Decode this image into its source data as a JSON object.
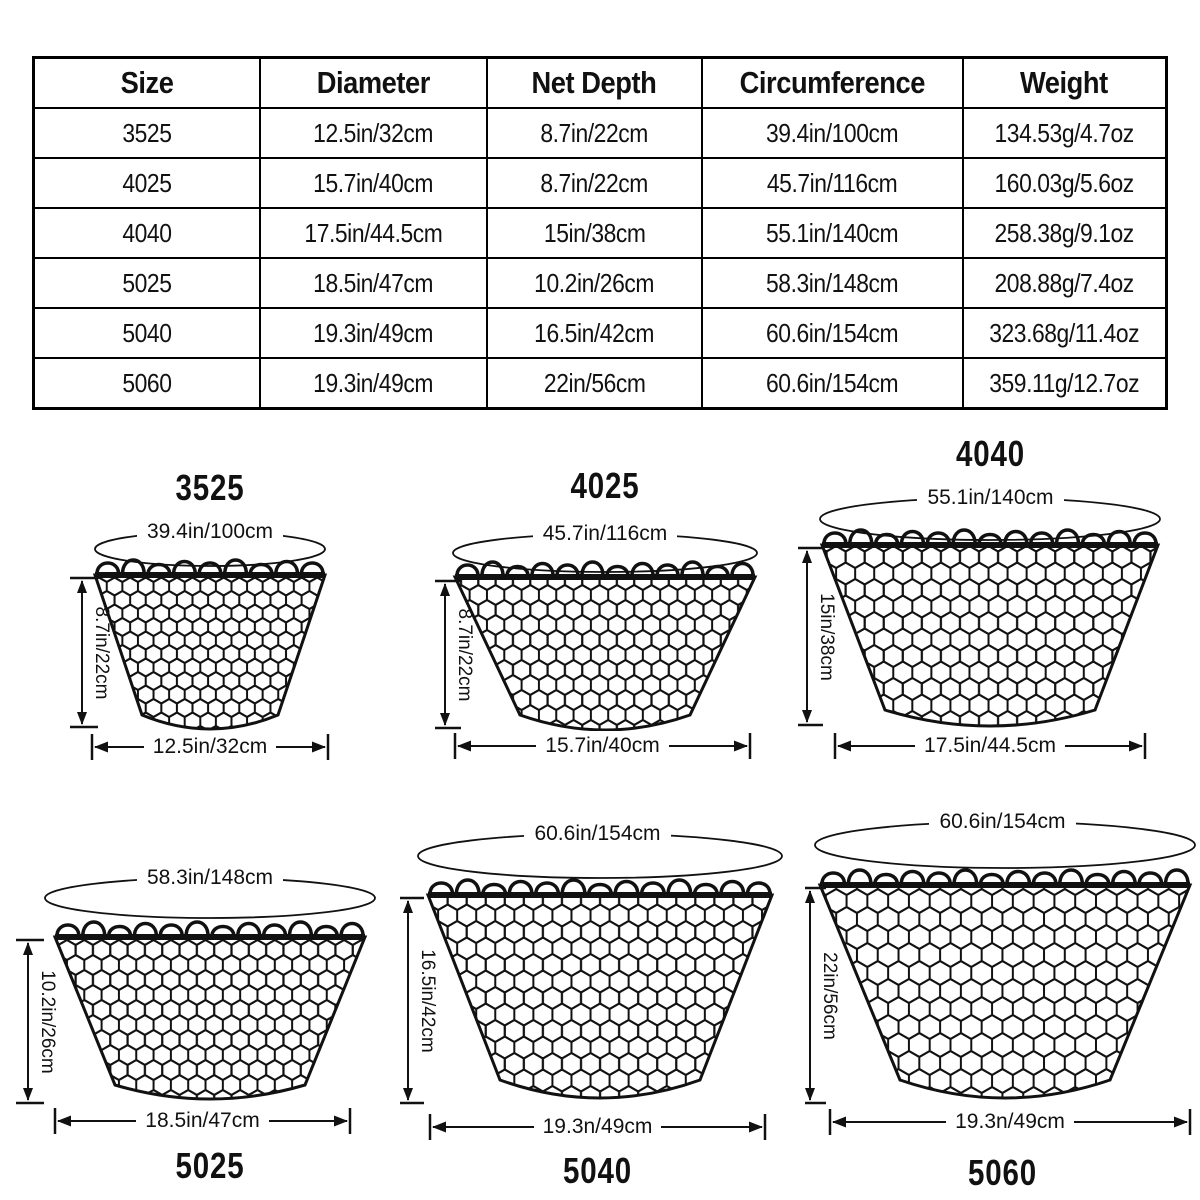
{
  "table": {
    "headers": [
      "Size",
      "Diameter",
      "Net Depth",
      "Circumference",
      "Weight"
    ],
    "rows": [
      [
        "3525",
        "12.5in/32cm",
        "8.7in/22cm",
        "39.4in/100cm",
        "134.53g/4.7oz"
      ],
      [
        "4025",
        "15.7in/40cm",
        "8.7in/22cm",
        "45.7in/116cm",
        "160.03g/5.6oz"
      ],
      [
        "4040",
        "17.5in/44.5cm",
        "15in/38cm",
        "55.1in/140cm",
        "258.38g/9.1oz"
      ],
      [
        "5025",
        "18.5in/47cm",
        "10.2in/26cm",
        "58.3in/148cm",
        "208.88g/7.4oz"
      ],
      [
        "5040",
        "19.3in/49cm",
        "16.5in/42cm",
        "60.6in/154cm",
        "323.68g/11.4oz"
      ],
      [
        "5060",
        "19.3in/49cm",
        "22in/56cm",
        "60.6in/154cm",
        "359.11g/12.7oz"
      ]
    ]
  },
  "diagrams": [
    {
      "id": "3525",
      "size_label": "3525",
      "circumference": "39.4in/100cm",
      "depth": "8.7in/22cm",
      "diameter": "12.5in/32cm"
    },
    {
      "id": "4025",
      "size_label": "4025",
      "circumference": "45.7in/116cm",
      "depth": "8.7in/22cm",
      "diameter": "15.7in/40cm"
    },
    {
      "id": "4040",
      "size_label": "4040",
      "circumference": "55.1in/140cm",
      "depth": "15in/38cm",
      "diameter": "17.5in/44.5cm"
    },
    {
      "id": "5025",
      "size_label": "5025",
      "circumference": "58.3in/148cm",
      "depth": "10.2in/26cm",
      "diameter": "18.5in/47cm"
    },
    {
      "id": "5040",
      "size_label": "5040",
      "circumference": "60.6in/154cm",
      "depth": "16.5in/42cm",
      "diameter": "19.3n/49cm"
    },
    {
      "id": "5060",
      "size_label": "5060",
      "circumference": "60.6in/154cm",
      "depth": "22in/56cm",
      "diameter": "19.3n/49cm"
    }
  ],
  "colors": {
    "ink": "#111111",
    "background": "#ffffff"
  }
}
